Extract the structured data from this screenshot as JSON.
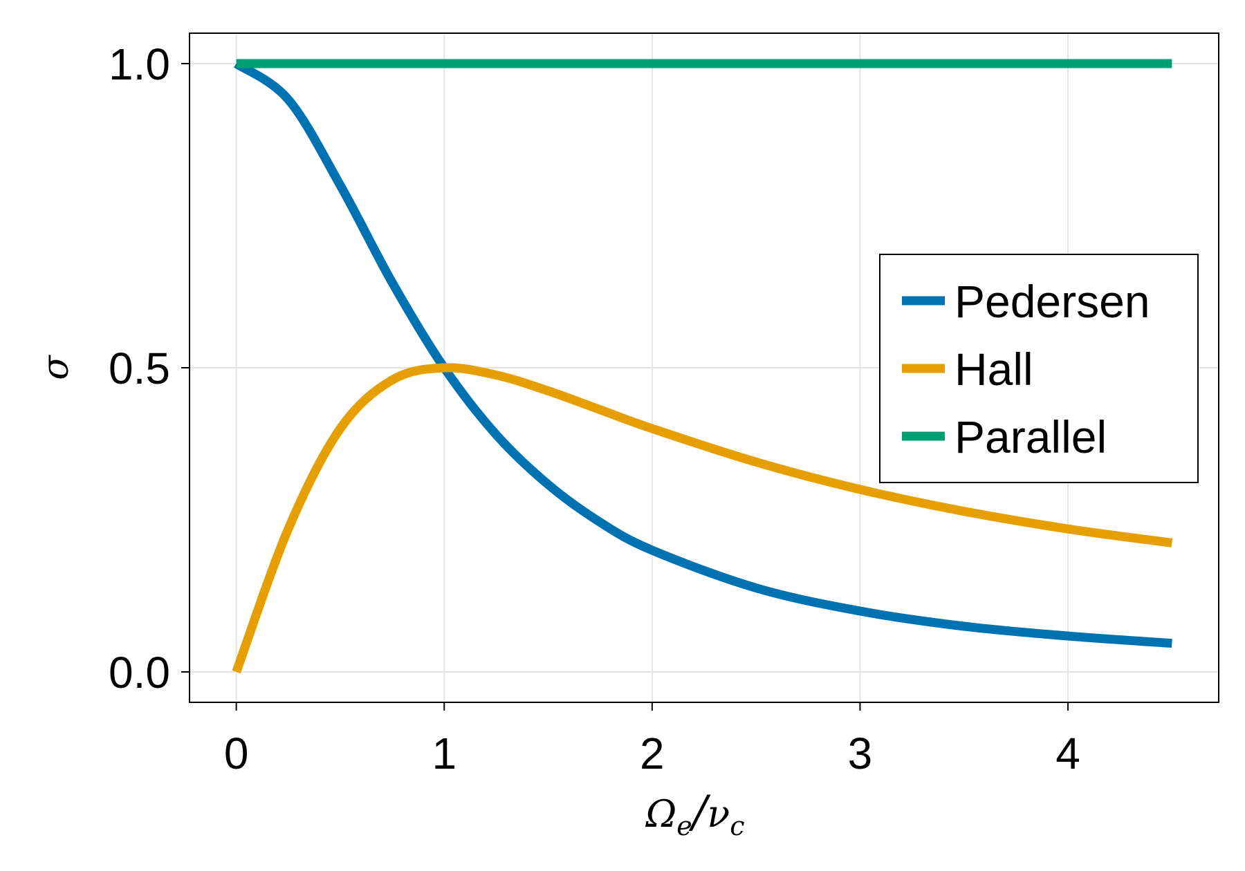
{
  "chart_data": {
    "type": "line",
    "title": "",
    "xlabel": "Ω_e/ν_c",
    "xlabel_parts": {
      "main": "Ω",
      "main_sub": "e",
      "slash": "/",
      "den": "ν",
      "den_sub": "c"
    },
    "ylabel": "σ",
    "xlim": [
      -0.225,
      4.725
    ],
    "ylim": [
      -0.05,
      1.05
    ],
    "xticks": [
      0,
      1,
      2,
      3,
      4
    ],
    "xtick_labels": [
      "0",
      "1",
      "2",
      "3",
      "4"
    ],
    "yticks": [
      0.0,
      0.5,
      1.0
    ],
    "ytick_labels": [
      "0.0",
      "0.5",
      "1.0"
    ],
    "grid": true,
    "legend_position": "right",
    "x": [
      0,
      0.25,
      0.5,
      0.75,
      1.0,
      1.25,
      1.5,
      1.75,
      2.0,
      2.5,
      3.0,
      3.5,
      4.0,
      4.5
    ],
    "series": [
      {
        "name": "Pedersen",
        "color": "#0072b2",
        "values": [
          1.0,
          0.941,
          0.8,
          0.64,
          0.5,
          0.39,
          0.308,
          0.246,
          0.2,
          0.138,
          0.1,
          0.075,
          0.059,
          0.047
        ]
      },
      {
        "name": "Hall",
        "color": "#e69f00",
        "values": [
          0.0,
          0.235,
          0.4,
          0.48,
          0.5,
          0.488,
          0.462,
          0.431,
          0.4,
          0.345,
          0.3,
          0.264,
          0.235,
          0.212
        ]
      },
      {
        "name": "Parallel",
        "color": "#009e73",
        "values": [
          1.0,
          1.0,
          1.0,
          1.0,
          1.0,
          1.0,
          1.0,
          1.0,
          1.0,
          1.0,
          1.0,
          1.0,
          1.0,
          1.0
        ]
      }
    ]
  }
}
